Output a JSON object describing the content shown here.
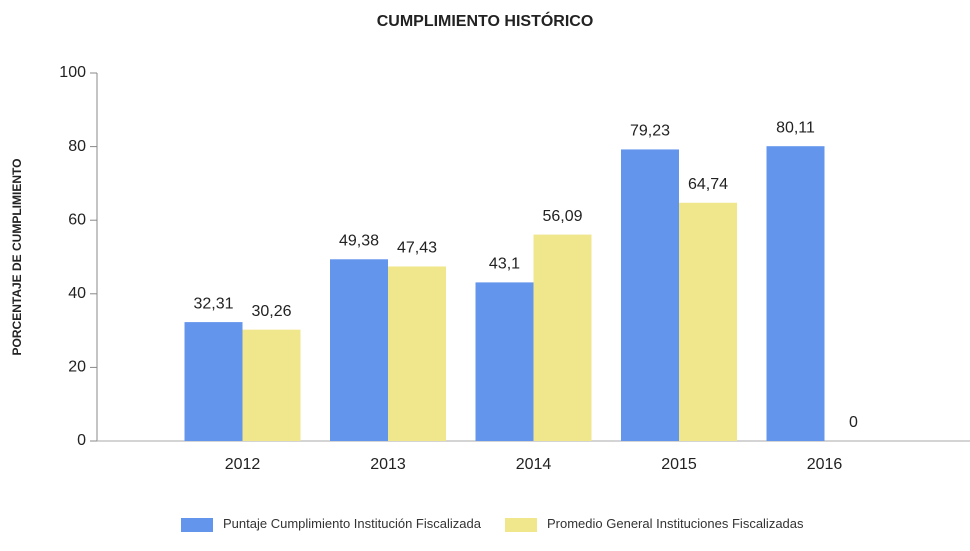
{
  "chart_data": {
    "type": "bar",
    "title": "CUMPLIMIENTO HISTÓRICO",
    "y_label": "PORCENTAJE DE CUMPLIMIENTO",
    "categories": [
      "2012",
      "2013",
      "2014",
      "2015",
      "2016"
    ],
    "series": [
      {
        "name": "Puntaje Cumplimiento Institución Fiscalizada",
        "color": "#6495ed",
        "values": [
          32.31,
          49.38,
          43.1,
          79.23,
          80.11
        ],
        "value_labels": [
          "32,31",
          "49,38",
          "43,1",
          "79,23",
          "80,11"
        ]
      },
      {
        "name": "Promedio General Instituciones Fiscalizadas",
        "color": "#f0e68c",
        "values": [
          30.26,
          47.43,
          56.09,
          64.74,
          0
        ],
        "value_labels": [
          "30,26",
          "47,43",
          "56,09",
          "64,74",
          "0"
        ]
      }
    ],
    "ylim": [
      0,
      100
    ],
    "yticks": [
      0,
      20,
      40,
      60,
      80,
      100
    ],
    "grid": false,
    "legend": "bottom"
  }
}
